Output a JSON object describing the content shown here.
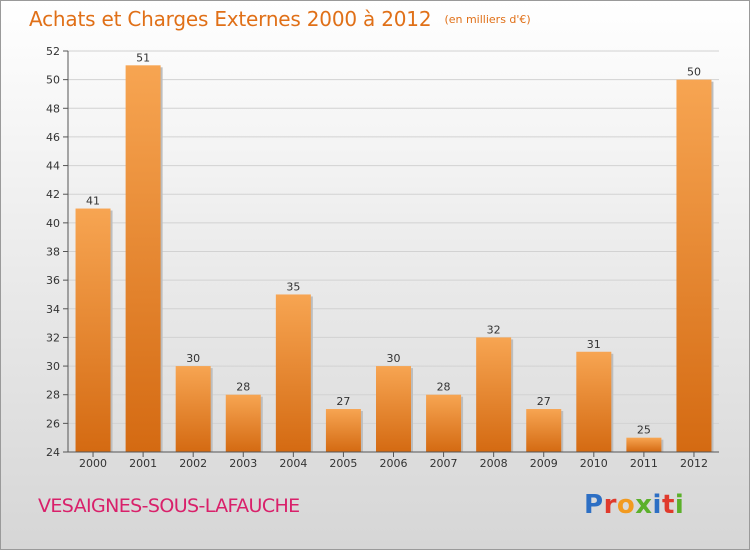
{
  "header": {
    "title": "Achats et Charges Externes 2000 à 2012",
    "subtitle": "(en milliers d'€)"
  },
  "footer": {
    "town": "VESAIGNES-SOUS-LAFAUCHE",
    "logo_letters": [
      "P",
      "r",
      "o",
      "x",
      "i",
      "t",
      "i"
    ],
    "logo_colors": [
      "#2d6fc4",
      "#e03a2c",
      "#f29a1f",
      "#5bb02a",
      "#2d6fc4",
      "#e03a2c",
      "#5bb02a"
    ]
  },
  "chart_data": {
    "type": "bar",
    "title": "Achats et Charges Externes 2000 à 2012",
    "subtitle": "(en milliers d'€)",
    "categories": [
      "2000",
      "2001",
      "2002",
      "2003",
      "2004",
      "2005",
      "2006",
      "2007",
      "2008",
      "2009",
      "2010",
      "2011",
      "2012"
    ],
    "values": [
      41,
      51,
      30,
      28,
      35,
      27,
      30,
      28,
      32,
      27,
      31,
      25,
      50
    ],
    "ylim": [
      24,
      52
    ],
    "yticks": [
      24,
      26,
      28,
      30,
      32,
      34,
      36,
      38,
      40,
      42,
      44,
      46,
      48,
      50,
      52
    ],
    "grid": true,
    "bar_color_top": "#f7a552",
    "bar_color_bottom": "#d46a12"
  }
}
